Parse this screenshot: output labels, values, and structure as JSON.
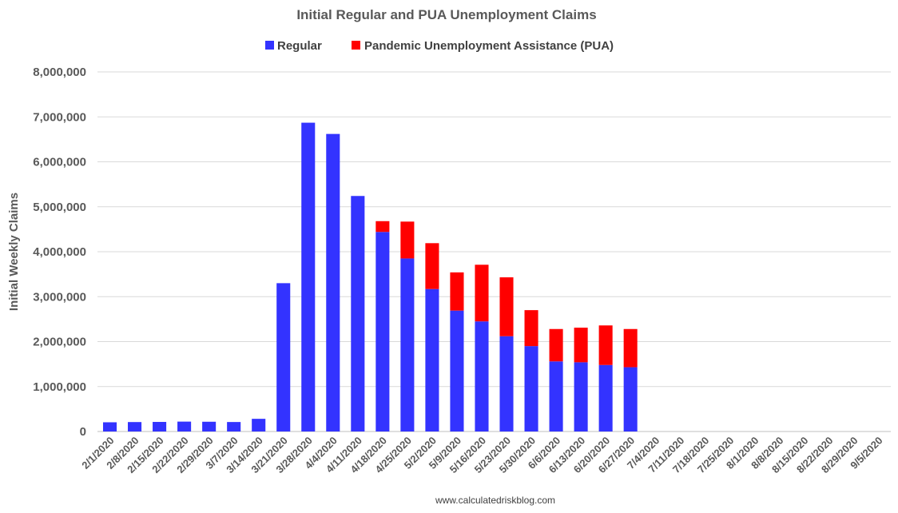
{
  "source_text": "www.calculatedriskblog.com",
  "colors": {
    "regular": "#3333ff",
    "pua": "#ff0000",
    "grid": "#d9d9d9",
    "text": "#595959"
  },
  "chart_data": {
    "type": "bar",
    "stacked": true,
    "title": "Initial Regular and PUA Unemployment Claims",
    "xlabel": "",
    "ylabel": "Initial Weekly Claims",
    "ylim": [
      0,
      8000000
    ],
    "yticks": [
      0,
      1000000,
      2000000,
      3000000,
      4000000,
      5000000,
      6000000,
      7000000,
      8000000
    ],
    "ytick_labels": [
      "0",
      "1,000,000",
      "2,000,000",
      "3,000,000",
      "4,000,000",
      "5,000,000",
      "6,000,000",
      "7,000,000",
      "8,000,000"
    ],
    "grid": true,
    "legend_position": "top",
    "categories": [
      "2/1/2020",
      "2/8/2020",
      "2/15/2020",
      "2/22/2020",
      "2/29/2020",
      "3/7/2020",
      "3/14/2020",
      "3/21/2020",
      "3/28/2020",
      "4/4/2020",
      "4/11/2020",
      "4/18/2020",
      "4/25/2020",
      "5/2/2020",
      "5/9/2020",
      "5/16/2020",
      "5/23/2020",
      "5/30/2020",
      "6/6/2020",
      "6/13/2020",
      "6/20/2020",
      "6/27/2020",
      "7/4/2020",
      "7/11/2020",
      "7/18/2020",
      "7/25/2020",
      "8/1/2020",
      "8/8/2020",
      "8/15/2020",
      "8/22/2020",
      "8/29/2020",
      "9/5/2020"
    ],
    "series": [
      {
        "name": "Regular",
        "color": "#3333ff",
        "values": [
          205000,
          210000,
          213000,
          220000,
          217000,
          211000,
          282000,
          3300000,
          6870000,
          6620000,
          5240000,
          4440000,
          3850000,
          3170000,
          2690000,
          2450000,
          2120000,
          1900000,
          1560000,
          1540000,
          1480000,
          1430000,
          null,
          null,
          null,
          null,
          null,
          null,
          null,
          null,
          null,
          null
        ]
      },
      {
        "name": "Pandemic Unemployment Assistance (PUA)",
        "color": "#ff0000",
        "values": [
          0,
          0,
          0,
          0,
          0,
          0,
          0,
          0,
          0,
          0,
          0,
          240000,
          820000,
          1020000,
          850000,
          1260000,
          1310000,
          800000,
          720000,
          770000,
          880000,
          850000,
          null,
          null,
          null,
          null,
          null,
          null,
          null,
          null,
          null,
          null
        ]
      }
    ]
  }
}
